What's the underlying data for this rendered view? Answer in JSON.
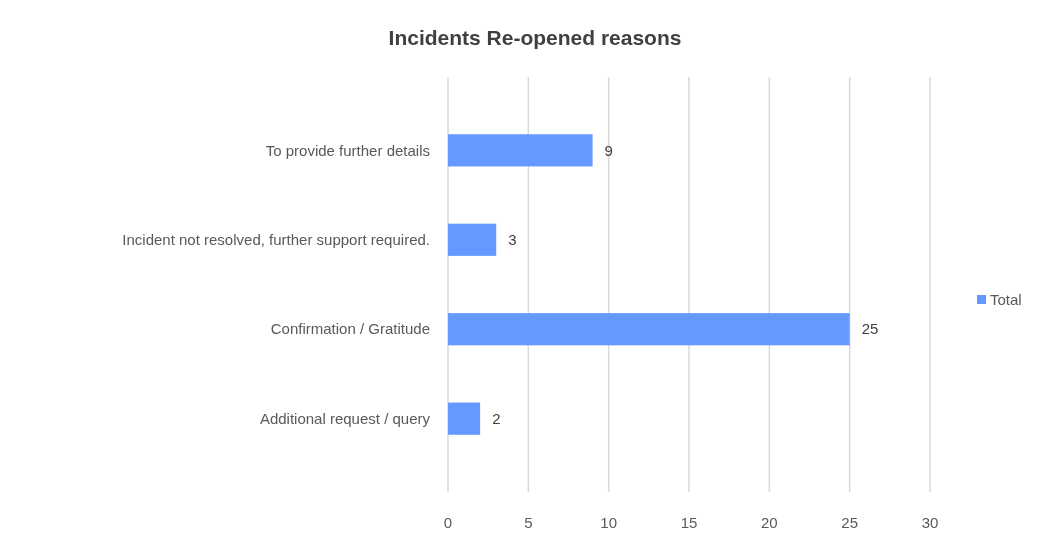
{
  "chart_data": {
    "type": "bar",
    "orientation": "horizontal",
    "title": "Incidents Re-opened reasons",
    "categories": [
      "To provide further details",
      "Incident not resolved, further support required.",
      "Confirmation / Gratitude",
      "Additional request / query"
    ],
    "series": [
      {
        "name": "Total",
        "color": "#6699ff",
        "values": [
          9,
          3,
          25,
          2
        ]
      }
    ],
    "xlim": [
      0,
      30
    ],
    "xticks": [
      0,
      5,
      10,
      15,
      20,
      25,
      30
    ],
    "grid": "x",
    "legend": "right",
    "data_labels": true
  }
}
